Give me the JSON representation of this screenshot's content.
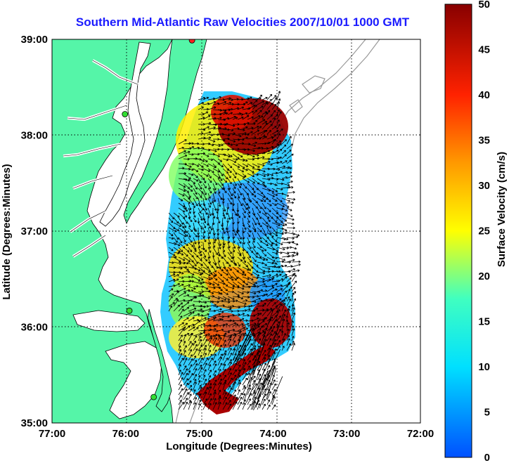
{
  "title": "Southern Mid-Atlantic Raw Velocities 2007/10/01 1000 GMT",
  "x_axis": {
    "label": "Longitude (Degrees:Minutes)",
    "ticks": [
      "77:00",
      "76:00",
      "75:00",
      "74:00",
      "73:00",
      "72:00"
    ]
  },
  "y_axis": {
    "label": "Latitude (Degrees:Minutes)",
    "ticks": [
      "39:00",
      "38:00",
      "37:00",
      "36:00",
      "35:00"
    ]
  },
  "colorbar": {
    "label": "Surface Velocity (cm/s)",
    "min": 0,
    "max": 50,
    "ticks": [
      "0",
      "5",
      "10",
      "15",
      "20",
      "25",
      "30",
      "35",
      "40",
      "45",
      "50"
    ]
  },
  "colors": {
    "land": "#55f5a8",
    "title": "#1a1aff",
    "bathymetry": "#999999",
    "station": "#33dd33",
    "station_alt": "#ff2020"
  },
  "map": {
    "lon_range": [
      -77,
      -72
    ],
    "lat_range": [
      35,
      39
    ],
    "grid": true,
    "stations": [
      {
        "lon": -76.01,
        "lat": 38.22
      },
      {
        "lon": -75.95,
        "lat": 36.17
      },
      {
        "lon": -75.62,
        "lat": 35.27
      },
      {
        "lon": -75.1,
        "lat": 38.99
      }
    ]
  }
}
